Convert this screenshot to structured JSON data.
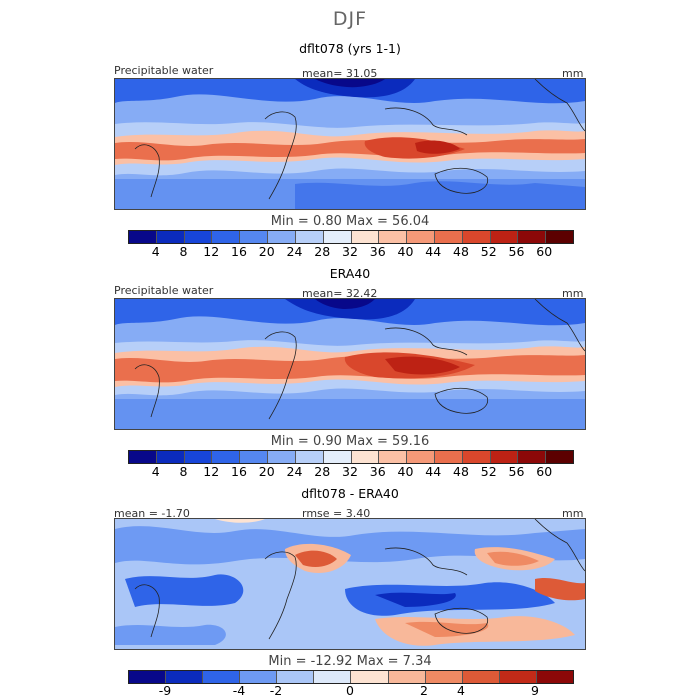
{
  "season": "DJF",
  "panels": [
    {
      "title": "dflt078 (yrs 1-1)",
      "left_label": "Precipitable water",
      "center_label": "mean=  31.05",
      "right_label": "mm",
      "minmax": "Min =    0.80  Max =   56.04",
      "colorbar_ticks": [
        "4",
        "8",
        "12",
        "16",
        "20",
        "24",
        "28",
        "32",
        "36",
        "40",
        "44",
        "48",
        "52",
        "56",
        "60"
      ]
    },
    {
      "title": "ERA40",
      "left_label": "Precipitable water",
      "center_label": "mean=  32.42",
      "right_label": "mm",
      "minmax": "Min =    0.90  Max =   59.16",
      "colorbar_ticks": [
        "4",
        "8",
        "12",
        "16",
        "20",
        "24",
        "28",
        "32",
        "36",
        "40",
        "44",
        "48",
        "52",
        "56",
        "60"
      ]
    },
    {
      "title": "dflt078 - ERA40",
      "left_label": "mean =  -1.70",
      "center_label": "rmse =    3.40",
      "right_label": "mm",
      "minmax": "Min = -12.92  Max =    7.34",
      "colorbar_ticks": [
        "-9",
        "-4",
        "-2",
        "0",
        "2",
        "4",
        "9"
      ]
    }
  ],
  "colors": {
    "abs_scale": [
      "#08088a",
      "#0b2bbd",
      "#1745d8",
      "#2f64e8",
      "#5587f0",
      "#86acf5",
      "#b7cff8",
      "#e4eefb",
      "#fde3d2",
      "#fbc0a5",
      "#f59978",
      "#ea6f4d",
      "#d9472c",
      "#bd2214",
      "#8c0808",
      "#5c0000"
    ],
    "diff_scale": [
      "#08088a",
      "#0b2bbd",
      "#2f64e8",
      "#6e9af3",
      "#aac6f7",
      "#dde9fa",
      "#fde3d2",
      "#f8b89a",
      "#ef8a63",
      "#dd5a37",
      "#c22a18",
      "#8c0808"
    ]
  }
}
